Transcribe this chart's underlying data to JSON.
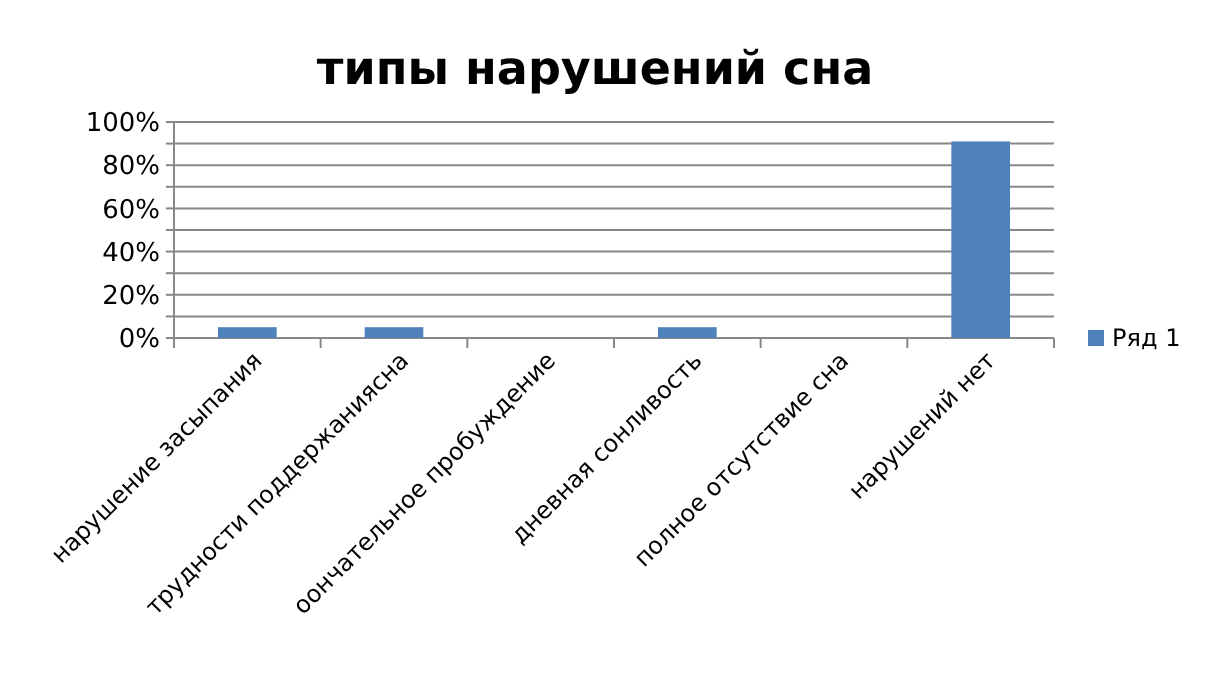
{
  "chart_data": {
    "type": "bar",
    "title": "типы нарушений сна",
    "categories": [
      "нарушение засыпания",
      "трудности поддержаниясна",
      "оончательное пробуждение",
      "дневная сонливость",
      "полное отсутствие сна",
      "нарушений нет"
    ],
    "series": [
      {
        "name": "Ряд 1",
        "color": "#4f81bd",
        "values": [
          5,
          5,
          0,
          5,
          0,
          91
        ]
      }
    ],
    "ylim": [
      0,
      100
    ],
    "yticks": [
      {
        "value": 0,
        "label": "0%"
      },
      {
        "value": 10,
        "label": null
      },
      {
        "value": 20,
        "label": "20%"
      },
      {
        "value": 30,
        "label": null
      },
      {
        "value": 40,
        "label": "40%"
      },
      {
        "value": 50,
        "label": null
      },
      {
        "value": 60,
        "label": "60%"
      },
      {
        "value": 70,
        "label": null
      },
      {
        "value": 80,
        "label": "80%"
      },
      {
        "value": 90,
        "label": null
      },
      {
        "value": 100,
        "label": "100%"
      }
    ],
    "grid": "y",
    "legend": "right"
  }
}
